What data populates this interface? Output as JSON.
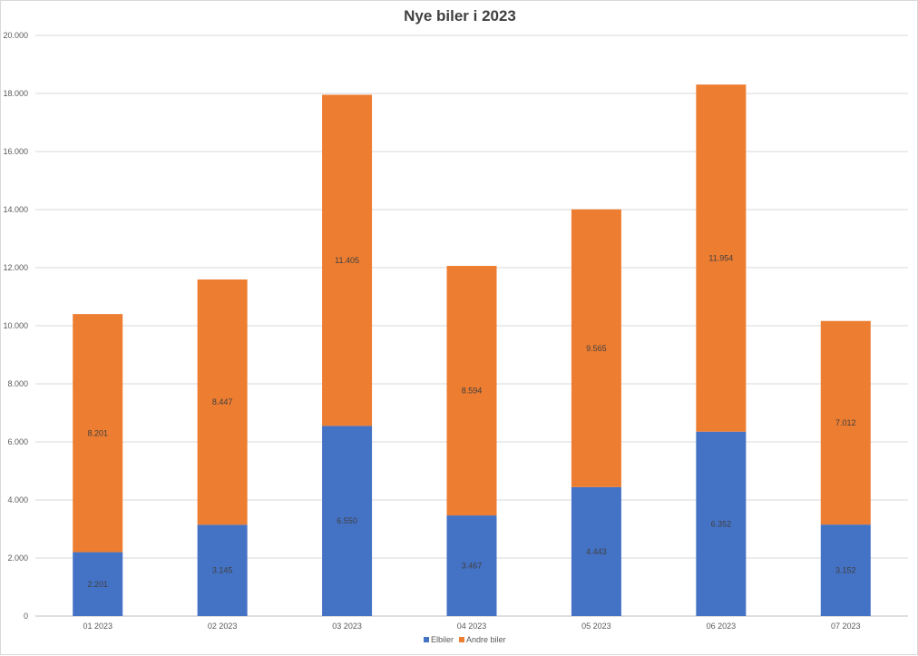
{
  "chart_data": {
    "type": "bar",
    "stacked": true,
    "title": "Nye biler i 2023",
    "xlabel": "",
    "ylabel": "",
    "categories": [
      "01 2023",
      "02 2023",
      "03 2023",
      "04 2023",
      "05 2023",
      "06 2023",
      "07 2023"
    ],
    "series": [
      {
        "name": "Elbiler",
        "color": "#4472c4",
        "values": [
          2201,
          3145,
          6550,
          3467,
          4443,
          6352,
          3152
        ],
        "labels": [
          "2.201",
          "3.145",
          "6.550",
          "3.467",
          "4.443",
          "6.352",
          "3.152"
        ]
      },
      {
        "name": "Andre biler",
        "color": "#ed7d31",
        "values": [
          8201,
          8447,
          11405,
          8594,
          9565,
          11954,
          7012
        ],
        "labels": [
          "8.201",
          "8.447",
          "11.405",
          "8.594",
          "9.565",
          "11.954",
          "7.012"
        ]
      }
    ],
    "ylim": [
      0,
      20000
    ],
    "yticks": [
      0,
      2000,
      4000,
      6000,
      8000,
      10000,
      12000,
      14000,
      16000,
      18000,
      20000
    ],
    "ytick_labels": [
      "0",
      "2.000",
      "4.000",
      "6.000",
      "8.000",
      "10.000",
      "12.000",
      "14.000",
      "16.000",
      "18.000",
      "20.000"
    ],
    "grid": true,
    "legend_position": "bottom"
  }
}
